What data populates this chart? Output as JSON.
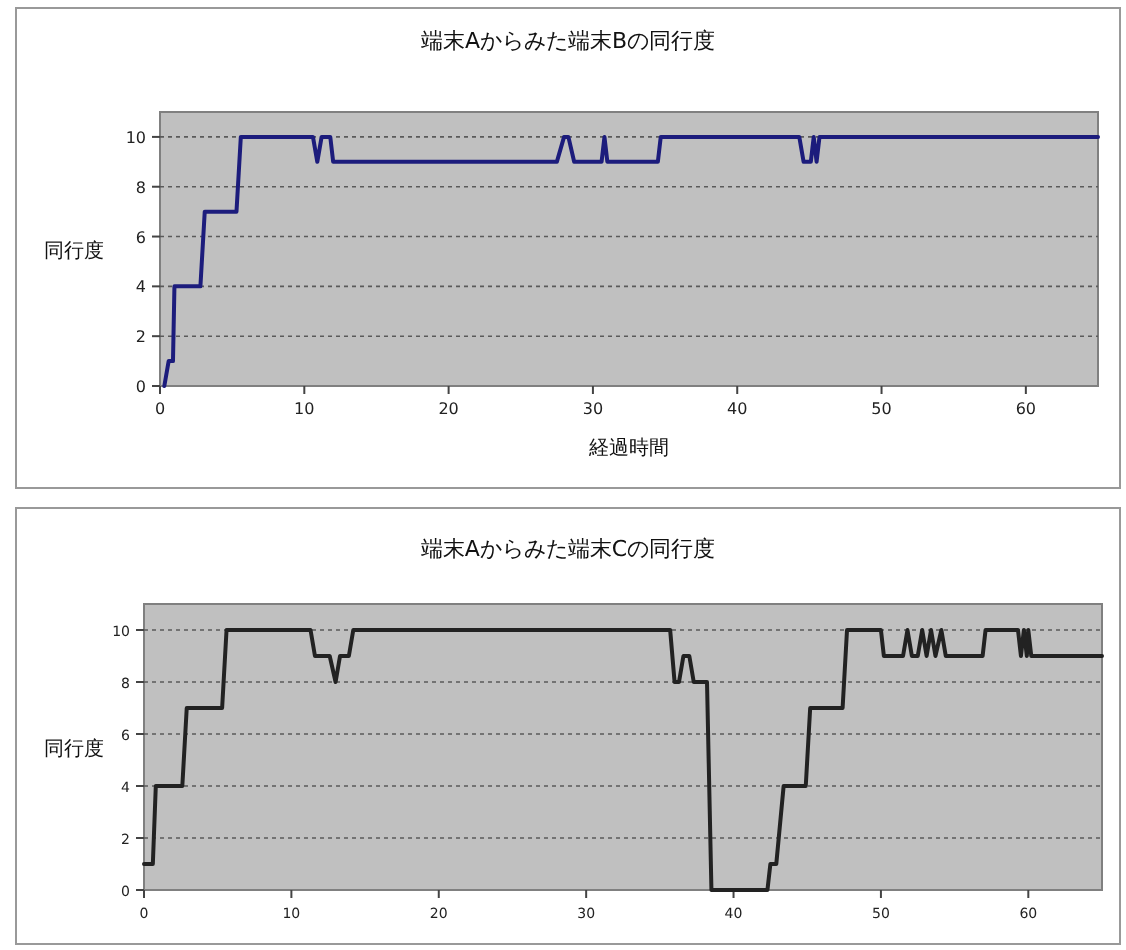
{
  "chart_data": [
    {
      "type": "line",
      "title": "端末Aからみた端末Bの同行度",
      "xlabel": "経過時間",
      "ylabel": "同行度",
      "xlim": [
        0,
        65
      ],
      "xticks": [
        0,
        10,
        20,
        30,
        40,
        50,
        60
      ],
      "ylim": [
        0,
        11
      ],
      "yticks": [
        0,
        2,
        4,
        6,
        8,
        10
      ],
      "grid": "y",
      "marker": "none",
      "line_style": "solid",
      "series": [
        {
          "color": "#1c1c7c",
          "x": [
            0.3,
            0.6,
            0.9,
            1.0,
            2.8,
            3.1,
            5.3,
            5.6,
            10.6,
            10.9,
            11.2,
            11.8,
            12.0,
            27.5,
            28,
            28.3,
            28.7,
            30.6,
            30.8,
            31,
            34.5,
            34.7,
            44.3,
            44.6,
            45.1,
            45.3,
            45.5,
            45.7,
            65
          ],
          "values": [
            0,
            1,
            1,
            4,
            4,
            7,
            7,
            10,
            10,
            9,
            10,
            10,
            9,
            9,
            10,
            10,
            9,
            9,
            10,
            9,
            9,
            10,
            10,
            9,
            9,
            10,
            9,
            10,
            10
          ]
        }
      ]
    },
    {
      "type": "line",
      "title": "端末Aからみた端末Cの同行度",
      "ylabel": "同行度",
      "xlim": [
        0,
        65
      ],
      "xticks": [
        0,
        10,
        20,
        30,
        40,
        50,
        60
      ],
      "ylim": [
        0,
        11
      ],
      "yticks": [
        0,
        2,
        4,
        6,
        8,
        10
      ],
      "grid": "y",
      "marker": "none",
      "line_style": "solid",
      "series": [
        {
          "color": "#222222",
          "x": [
            0,
            0.6,
            0.8,
            2.6,
            2.9,
            5.3,
            5.6,
            11.3,
            11.6,
            12.6,
            13,
            13.3,
            13.9,
            14.2,
            35.7,
            36,
            36.3,
            36.6,
            37,
            37.3,
            38.2,
            38.5,
            42.3,
            42.5,
            42.9,
            43.4,
            44.9,
            45.2,
            47.4,
            47.7,
            50,
            50.2,
            51.5,
            51.8,
            52.1,
            52.5,
            52.8,
            53.1,
            53.4,
            53.7,
            54.1,
            54.4,
            56.9,
            57.1,
            59.3,
            59.5,
            59.7,
            59.9,
            60,
            60.2,
            65
          ],
          "values": [
            1,
            1,
            4,
            4,
            7,
            7,
            10,
            10,
            9,
            9,
            8,
            9,
            9,
            10,
            10,
            8,
            8,
            9,
            9,
            8,
            8,
            0,
            0,
            1,
            1,
            4,
            4,
            7,
            7,
            10,
            10,
            9,
            9,
            10,
            9,
            9,
            10,
            9,
            10,
            9,
            10,
            9,
            9,
            10,
            10,
            9,
            10,
            9,
            10,
            9,
            9
          ]
        }
      ]
    }
  ]
}
